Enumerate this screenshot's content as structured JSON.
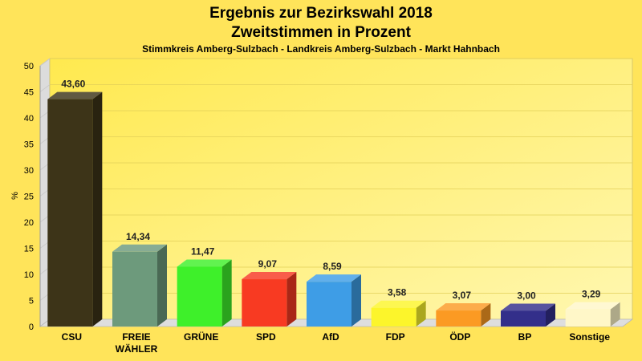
{
  "chart_data": {
    "type": "bar",
    "title": "Ergebnis zur Bezirkswahl 2018",
    "subtitle": "Zweitstimmen in Prozent",
    "subsubtitle": "Stimmkreis Amberg-Sulzbach - Landkreis Amberg-Sulzbach - Markt Hahnbach",
    "xlabel": "",
    "ylabel": "%",
    "ylim": [
      0,
      50
    ],
    "yticks": [
      0,
      5,
      10,
      15,
      20,
      25,
      30,
      35,
      40,
      45,
      50
    ],
    "grid": true,
    "categories": [
      "CSU",
      "FREIE WÄHLER",
      "GRÜNE",
      "SPD",
      "AfD",
      "FDP",
      "ÖDP",
      "BP",
      "Sonstige"
    ],
    "category_lines": [
      [
        "CSU"
      ],
      [
        "FREIE",
        "WÄHLER"
      ],
      [
        "GRÜNE"
      ],
      [
        "SPD"
      ],
      [
        "AfD"
      ],
      [
        "FDP"
      ],
      [
        "ÖDP"
      ],
      [
        "BP"
      ],
      [
        "Sonstige"
      ]
    ],
    "values": [
      43.6,
      14.34,
      11.47,
      9.07,
      8.59,
      3.58,
      3.07,
      3.0,
      3.29
    ],
    "value_labels": [
      "43,60",
      "14,34",
      "11,47",
      "9,07",
      "8,59",
      "3,58",
      "3,07",
      "3,00",
      "3,29"
    ],
    "colors": [
      "#3d3418",
      "#6d9a7c",
      "#3ef02a",
      "#f83a22",
      "#3e9de6",
      "#fcf52b",
      "#fb9a23",
      "#332f8a",
      "#fff7c8"
    ]
  }
}
